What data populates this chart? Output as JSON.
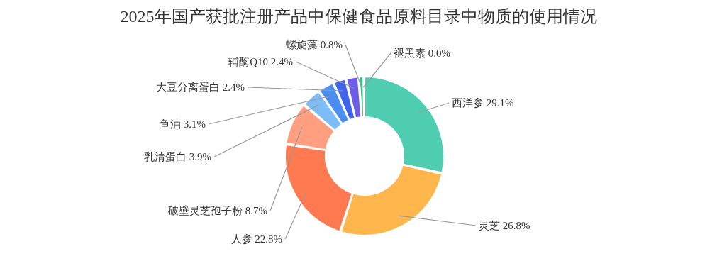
{
  "chart_data": {
    "type": "donut",
    "title": "2025年国产获批注册产品中保健食品原料目录中物质的使用情况",
    "categories": [
      "西洋参",
      "灵芝",
      "人参",
      "破壁灵芝孢子粉",
      "乳清蛋白",
      "鱼油",
      "大豆分离蛋白",
      "辅酶Q10",
      "螺旋藻",
      "褪黑素"
    ],
    "values": [
      29.1,
      26.8,
      22.8,
      8.7,
      3.9,
      3.1,
      2.4,
      2.4,
      0.8,
      0.0
    ],
    "value_labels": [
      "29.1%",
      "26.8%",
      "22.8%",
      "8.7%",
      "3.9%",
      "3.1%",
      "2.4%",
      "2.4%",
      "0.8%",
      "0.0%"
    ],
    "colors": [
      "#4ecdb0",
      "#ffb64d",
      "#ff7a50",
      "#ff9f80",
      "#7cbcf7",
      "#4a8ef2",
      "#3f63ea",
      "#6c5ce7",
      "#2ec28a",
      "#f5a623"
    ],
    "data_labels": true
  }
}
